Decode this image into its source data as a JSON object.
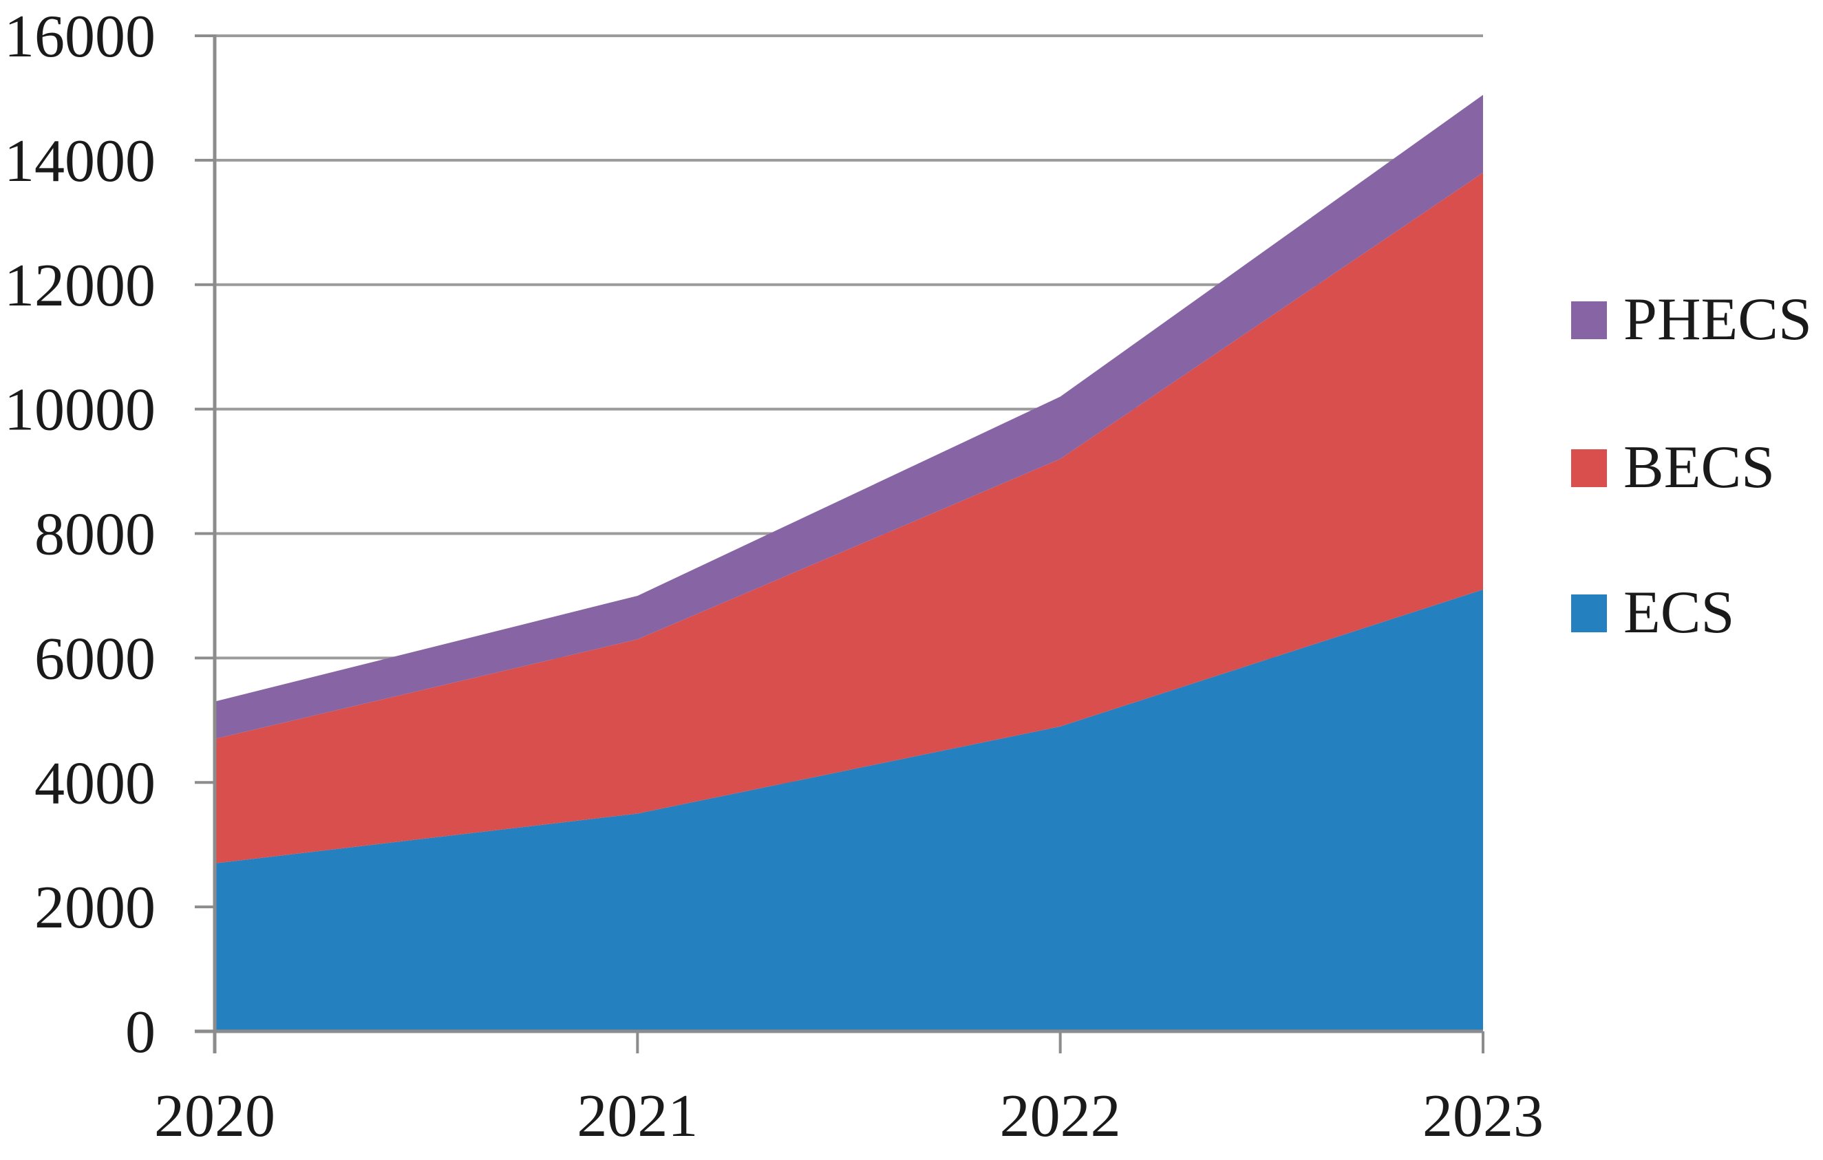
{
  "chart_data": {
    "type": "area",
    "stacked": true,
    "title": "",
    "xlabel": "",
    "ylabel": "",
    "categories": [
      "2020",
      "2021",
      "2022",
      "2023"
    ],
    "series": [
      {
        "name": "ECS",
        "color": "#2480BF",
        "values": [
          2700,
          3500,
          4900,
          7100
        ]
      },
      {
        "name": "BECS",
        "color": "#D94F4D",
        "values": [
          2000,
          2800,
          4300,
          6700
        ]
      },
      {
        "name": "PHECS",
        "color": "#8765A5",
        "values": [
          600,
          700,
          1000,
          1250
        ]
      }
    ],
    "stacked_totals": [
      5300,
      7000,
      10200,
      15050
    ],
    "y_axis": {
      "min": 0,
      "max": 16000,
      "step": 2000,
      "tick_labels": [
        "0",
        "2000",
        "4000",
        "6000",
        "8000",
        "10000",
        "12000",
        "14000",
        "16000"
      ]
    },
    "x_axis": {
      "tick_labels": [
        "2020",
        "2021",
        "2022",
        "2023"
      ]
    },
    "legend": {
      "position": "right",
      "order_top_to_bottom": [
        "PHECS",
        "BECS",
        "ECS"
      ]
    },
    "grid": "horizontal",
    "style_colors": {
      "gridline": "#9B9B9B",
      "axis": "#8C8C8C",
      "text": "#1A1A1A"
    }
  }
}
